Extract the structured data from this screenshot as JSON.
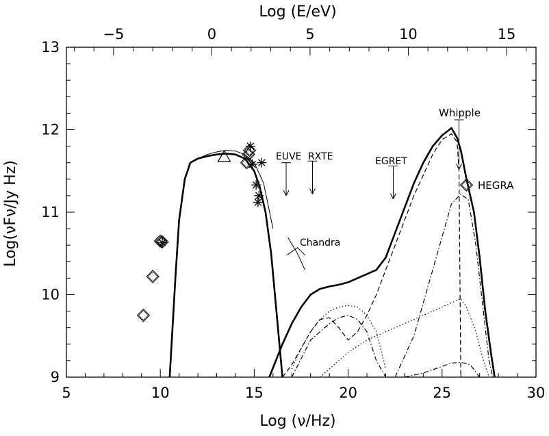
{
  "chart_data": {
    "type": "scatter",
    "title": "",
    "xlabel": "Log (ν/Hz)",
    "ylabel": "Log(νFν/Jy Hz)",
    "x2label": "Log (E/eV)",
    "xlim": [
      5,
      30
    ],
    "ylim": [
      9,
      13
    ],
    "x2lim": [
      -7.4,
      16.5
    ],
    "xticks": [
      5,
      10,
      15,
      20,
      25,
      30
    ],
    "yticks": [
      9,
      10,
      11,
      12,
      13
    ],
    "x2ticks": [
      -5,
      0,
      5,
      10,
      15
    ],
    "grid": false,
    "labels": {
      "euve": "EUVE",
      "rxte": "RXTE",
      "egret": "EGRET",
      "whipple": "Whipple",
      "hegra": "HEGRA",
      "chandra": "Chandra"
    },
    "series": [
      {
        "style": "thick-solid",
        "x": [
          10.5,
          10.8,
          11.0,
          11.3,
          11.6,
          12.0,
          12.5,
          13.0,
          13.5,
          14.0,
          14.5,
          15.0,
          15.3,
          15.6,
          15.9,
          16.1,
          16.3,
          16.5
        ],
        "y": [
          9.0,
          10.2,
          10.9,
          11.4,
          11.6,
          11.65,
          11.68,
          11.7,
          11.71,
          11.7,
          11.65,
          11.5,
          11.3,
          11.0,
          10.5,
          10.0,
          9.5,
          9.0
        ]
      },
      {
        "style": "thin-solid",
        "x": [
          11.5,
          12.0,
          12.5,
          13.0,
          13.5,
          14.0,
          14.5,
          15.0,
          15.5,
          16.0
        ],
        "y": [
          11.58,
          11.65,
          11.7,
          11.73,
          11.75,
          11.74,
          11.7,
          11.6,
          11.35,
          10.8
        ]
      },
      {
        "style": "thick-solid",
        "x": [
          15.8,
          16.5,
          17.0,
          17.5,
          18.0,
          18.5,
          19.0,
          19.5,
          20.0,
          20.5,
          21.0,
          21.5,
          22.0,
          22.5,
          23.0,
          23.5,
          24.0,
          24.5,
          25.0,
          25.5,
          25.8,
          26.0,
          26.3,
          26.7,
          27.0,
          27.3,
          27.6,
          27.8
        ],
        "y": [
          9.0,
          9.4,
          9.65,
          9.85,
          10.0,
          10.07,
          10.1,
          10.12,
          10.15,
          10.2,
          10.25,
          10.3,
          10.45,
          10.75,
          11.05,
          11.35,
          11.6,
          11.8,
          11.93,
          12.02,
          11.9,
          11.75,
          11.4,
          11.0,
          10.45,
          9.8,
          9.3,
          9.0
        ]
      },
      {
        "style": "dashed",
        "x": [
          16.5,
          17.0,
          17.5,
          18.0,
          18.5,
          19.0,
          19.5,
          20.0,
          20.5,
          21.0,
          21.5,
          22.0,
          22.5,
          23.0,
          23.5,
          24.0,
          24.5,
          25.0,
          25.5,
          25.8,
          25.9,
          26.0
        ],
        "y": [
          9.0,
          9.15,
          9.35,
          9.55,
          9.7,
          9.72,
          9.6,
          9.45,
          9.55,
          9.75,
          10.0,
          10.3,
          10.6,
          10.9,
          11.2,
          11.45,
          11.7,
          11.88,
          11.95,
          11.85,
          11.5,
          9.0
        ]
      },
      {
        "style": "dot",
        "x": [
          17.0,
          17.5,
          18.0,
          18.5,
          19.0,
          19.5,
          20.0,
          20.5,
          21.0,
          21.5,
          22.0
        ],
        "y": [
          9.1,
          9.35,
          9.55,
          9.7,
          9.8,
          9.85,
          9.87,
          9.85,
          9.75,
          9.55,
          9.1
        ]
      },
      {
        "style": "dot",
        "x": [
          18.5,
          19.0,
          20.0,
          21.0,
          22.0,
          23.0,
          24.0,
          25.0,
          25.5,
          26.0,
          26.3,
          26.8,
          27.2,
          27.5
        ],
        "y": [
          9.0,
          9.1,
          9.3,
          9.45,
          9.55,
          9.65,
          9.75,
          9.85,
          9.9,
          9.95,
          9.85,
          9.55,
          9.2,
          9.0
        ]
      },
      {
        "style": "dash-dot",
        "x": [
          17.0,
          18.0,
          19.0,
          19.5,
          20.0,
          20.5,
          21.0,
          21.5,
          22.0
        ],
        "y": [
          9.0,
          9.45,
          9.65,
          9.72,
          9.75,
          9.7,
          9.55,
          9.2,
          9.0
        ]
      },
      {
        "style": "dash-dot",
        "x": [
          22.5,
          23.5,
          24.0,
          24.5,
          25.0,
          25.5,
          26.0,
          26.4,
          26.8,
          27.1,
          27.3,
          27.5,
          27.7
        ],
        "y": [
          9.0,
          9.5,
          9.9,
          10.3,
          10.7,
          11.1,
          11.22,
          11.15,
          10.6,
          10.0,
          9.6,
          9.2,
          9.0
        ]
      },
      {
        "style": "dash-dot",
        "x": [
          23.0,
          24.0,
          25.0,
          25.5,
          26.0,
          26.5,
          27.0
        ],
        "y": [
          9.0,
          9.05,
          9.13,
          9.17,
          9.18,
          9.15,
          9.0
        ]
      }
    ],
    "diamonds": [
      {
        "x": 9.1,
        "y": 9.75
      },
      {
        "x": 9.6,
        "y": 10.22
      },
      {
        "x": 10.0,
        "y": 10.65
      },
      {
        "x": 10.1,
        "y": 10.64
      },
      {
        "x": 14.6,
        "y": 11.6
      },
      {
        "x": 14.7,
        "y": 11.7
      },
      {
        "x": 14.75,
        "y": 11.75
      },
      {
        "x": 26.3,
        "y": 11.33
      }
    ],
    "asterisks": [
      {
        "x": 10.1,
        "y": 10.63
      },
      {
        "x": 14.8,
        "y": 11.8
      },
      {
        "x": 14.9,
        "y": 11.58
      },
      {
        "x": 15.4,
        "y": 11.6
      },
      {
        "x": 15.1,
        "y": 11.33
      },
      {
        "x": 15.25,
        "y": 11.2
      },
      {
        "x": 15.2,
        "y": 11.12
      }
    ],
    "triangles": [
      {
        "x": 13.4,
        "y": 11.67
      }
    ],
    "upper_limits": [
      {
        "id": "euve",
        "x": 16.7,
        "y_top": 11.6,
        "y_bottom": 11.2
      },
      {
        "id": "rxte",
        "x": 18.1,
        "y_top": 11.62,
        "y_bottom": 11.22
      },
      {
        "id": "egret",
        "x": 22.4,
        "y_top": 11.56,
        "y_bottom": 11.16
      },
      {
        "id": "whipple",
        "x": 25.9,
        "y_top": 12.12,
        "y_bottom": 11.52
      }
    ],
    "chandra_bowtie": [
      {
        "x": [
          16.8,
          17.3,
          17.7
        ],
        "y": [
          10.69,
          10.5,
          10.3
        ]
      },
      {
        "x": [
          16.75,
          17.3,
          17.7
        ],
        "y": [
          10.48,
          10.57,
          10.48
        ]
      }
    ]
  }
}
